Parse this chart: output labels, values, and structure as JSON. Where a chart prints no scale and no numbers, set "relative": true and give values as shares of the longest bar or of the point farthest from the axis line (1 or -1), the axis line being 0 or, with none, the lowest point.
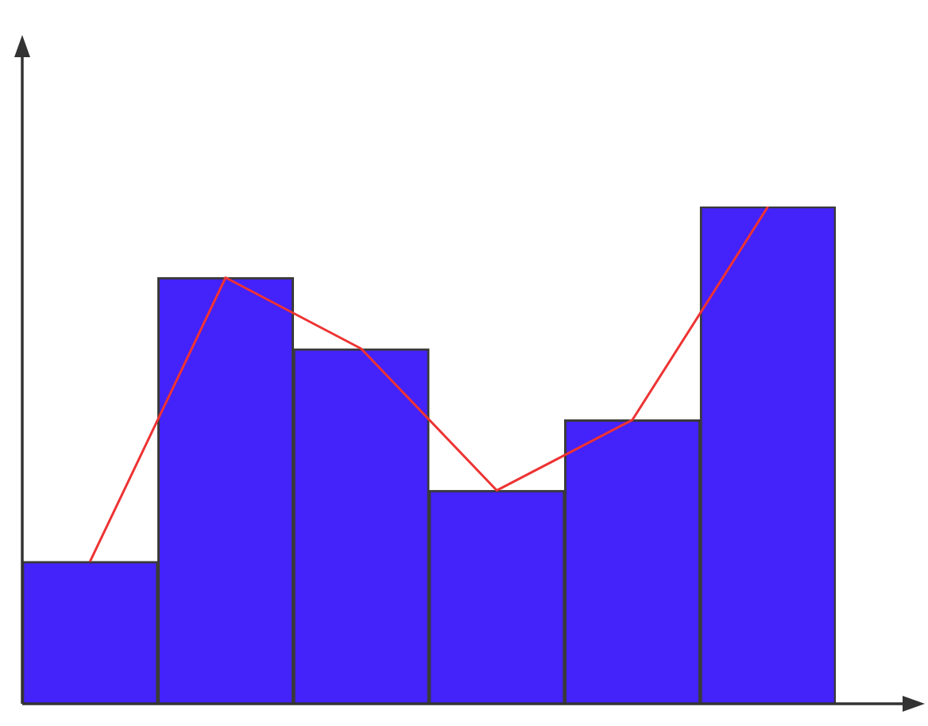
{
  "chart_data": [
    {
      "type": "bar",
      "relative": true,
      "categories": [
        null,
        null,
        null,
        null,
        null,
        null
      ],
      "legend": false,
      "color": "#4422fa",
      "values": [
        0.286,
        0.857,
        0.714,
        0.429,
        0.571,
        1
      ]
    },
    {
      "type": "line",
      "relative": true,
      "categories": [
        null,
        null,
        null,
        null,
        null,
        null
      ],
      "legend": false,
      "marker": "none",
      "color": "#ee3333",
      "values": [
        0.286,
        0.857,
        0.714,
        0.429,
        0.571,
        1
      ]
    }
  ]
}
